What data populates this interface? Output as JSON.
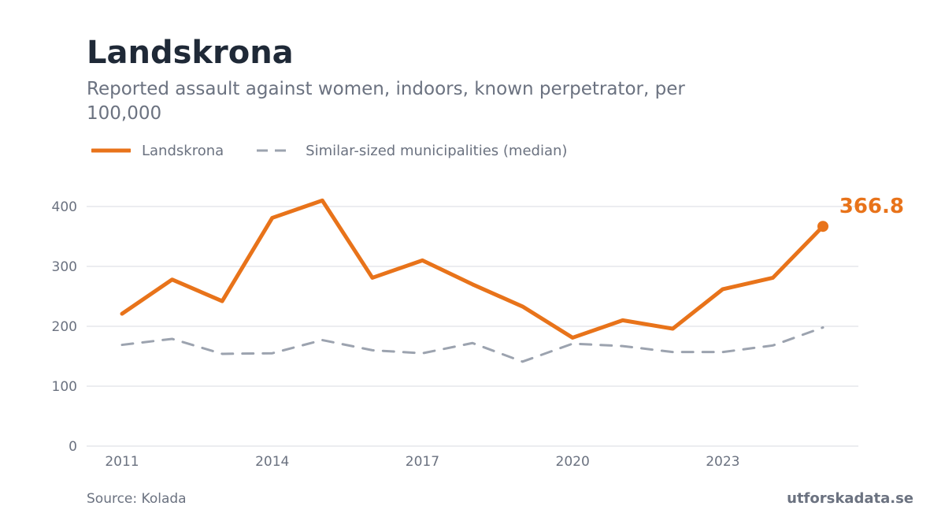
{
  "title": "Landskrona",
  "subtitle": "Reported assault against women, indoors, known perpetrator, per 100,000",
  "source": "Source: Kolada",
  "brand": "utforskadata.se",
  "colors": {
    "primary": "#e8731a",
    "median": "#9ca3af",
    "grid": "#e5e7eb",
    "axis_text": "#6b7280"
  },
  "chart_data": {
    "type": "line",
    "x": [
      2011,
      2012,
      2013,
      2014,
      2015,
      2016,
      2017,
      2018,
      2019,
      2020,
      2021,
      2022,
      2023,
      2024,
      2025
    ],
    "xticks": [
      "2011",
      "2014",
      "2017",
      "2020",
      "2023"
    ],
    "yticks": [
      "0",
      "100",
      "200",
      "300",
      "400"
    ],
    "ylim": [
      0,
      400
    ],
    "grid": true,
    "legend_position": "top-left",
    "series": [
      {
        "name": "Landskrona",
        "style": "solid",
        "values": [
          221,
          278,
          242,
          381,
          410,
          281,
          310,
          270,
          233,
          181,
          210,
          196,
          262,
          281,
          366.8
        ]
      },
      {
        "name": "Similar-sized municipalities (median)",
        "style": "dashed",
        "values": [
          169,
          179,
          154,
          155,
          177,
          160,
          155,
          172,
          141,
          171,
          167,
          157,
          157,
          168,
          198
        ]
      }
    ],
    "end_label": "366.8"
  }
}
